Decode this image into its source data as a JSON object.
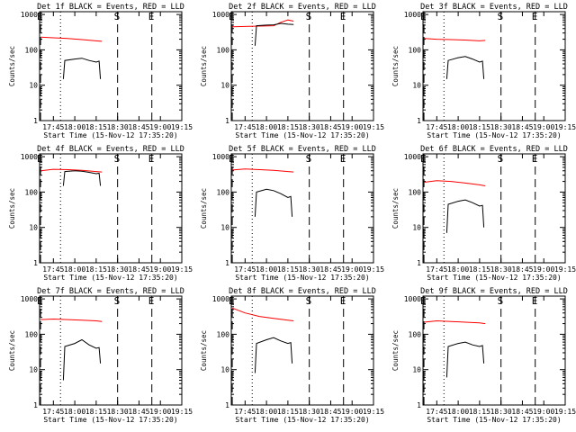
{
  "chart_data": [
    {
      "type": "line",
      "title": "Det 1f BLACK = Events, RED = LLD",
      "xlabel": "Start Time (15-Nov-12 17:35:20)",
      "ylabel": "Counts/sec",
      "yscale": "log",
      "ylim": [
        1,
        1200
      ],
      "xlim": [
        "17:35:20",
        "19:15:00"
      ],
      "x_ticks": [
        "17:45",
        "18:00",
        "18:15",
        "18:30",
        "18:45",
        "19:00",
        "19:15"
      ],
      "y_ticks": [
        "1",
        "10",
        "100",
        "1000"
      ],
      "markers": [
        {
          "label": "E",
          "time": "17:36",
          "style": "dashed"
        },
        {
          "label": "",
          "time": "17:50",
          "style": "dotted"
        },
        {
          "label": "S",
          "time": "18:30",
          "style": "dashed"
        },
        {
          "label": "E",
          "time": "18:54",
          "style": "dashed"
        },
        {
          "label": "",
          "time": "19:15",
          "style": "dotted"
        }
      ],
      "series": [
        {
          "color": "#ff0000",
          "x": [
            "17:36",
            "17:45",
            "17:55",
            "18:05",
            "18:15",
            "18:19"
          ],
          "y": [
            230,
            220,
            210,
            195,
            180,
            175
          ]
        },
        {
          "color": "#000000",
          "x": [
            "17:52",
            "17:53",
            "18:00",
            "18:05",
            "18:10",
            "18:15",
            "18:17",
            "18:18"
          ],
          "y": [
            15,
            50,
            55,
            58,
            50,
            45,
            48,
            15
          ]
        }
      ]
    },
    {
      "type": "line",
      "title": "Det 2f BLACK = Events, RED = LLD",
      "xlabel": "Start Time (15-Nov-12 17:35:20)",
      "ylabel": "Counts/sec",
      "yscale": "log",
      "ylim": [
        1,
        1200
      ],
      "xlim": [
        "17:35:20",
        "19:15:00"
      ],
      "x_ticks": [
        "17:45",
        "18:00",
        "18:15",
        "18:30",
        "18:45",
        "19:00",
        "19:15"
      ],
      "y_ticks": [
        "1",
        "10",
        "100",
        "1000"
      ],
      "markers": [
        {
          "label": "E",
          "time": "17:36",
          "style": "dashed"
        },
        {
          "label": "",
          "time": "17:50",
          "style": "dotted"
        },
        {
          "label": "S",
          "time": "18:30",
          "style": "dashed"
        },
        {
          "label": "E",
          "time": "18:54",
          "style": "dashed"
        },
        {
          "label": "",
          "time": "19:15",
          "style": "dotted"
        }
      ],
      "series": [
        {
          "color": "#ff0000",
          "x": [
            "17:36",
            "17:45",
            "17:55",
            "18:05",
            "18:10",
            "18:15",
            "18:19"
          ],
          "y": [
            450,
            460,
            470,
            480,
            600,
            700,
            650
          ]
        },
        {
          "color": "#000000",
          "x": [
            "17:52",
            "17:53",
            "18:00",
            "18:05",
            "18:10",
            "18:15",
            "18:19"
          ],
          "y": [
            130,
            480,
            500,
            510,
            560,
            530,
            520
          ]
        }
      ]
    },
    {
      "type": "line",
      "title": "Det 3f BLACK = Events, RED = LLD",
      "xlabel": "Start Time (15-Nov-12 17:35:20)",
      "ylabel": "Counts/sec",
      "yscale": "log",
      "ylim": [
        1,
        1200
      ],
      "xlim": [
        "17:35:20",
        "19:15:00"
      ],
      "x_ticks": [
        "17:45",
        "18:00",
        "18:15",
        "18:30",
        "18:45",
        "19:00",
        "19:15"
      ],
      "y_ticks": [
        "1",
        "10",
        "100",
        "1000"
      ],
      "markers": [
        {
          "label": "E",
          "time": "17:36",
          "style": "dashed"
        },
        {
          "label": "",
          "time": "17:50",
          "style": "dotted"
        },
        {
          "label": "S",
          "time": "18:30",
          "style": "dashed"
        },
        {
          "label": "E",
          "time": "18:54",
          "style": "dashed"
        },
        {
          "label": "",
          "time": "19:15",
          "style": "dotted"
        }
      ],
      "series": [
        {
          "color": "#ff0000",
          "x": [
            "17:36",
            "17:45",
            "17:55",
            "18:05",
            "18:15",
            "18:19"
          ],
          "y": [
            210,
            200,
            195,
            190,
            180,
            185
          ]
        },
        {
          "color": "#000000",
          "x": [
            "17:52",
            "17:53",
            "18:00",
            "18:05",
            "18:10",
            "18:15",
            "18:17",
            "18:18"
          ],
          "y": [
            15,
            50,
            60,
            65,
            55,
            45,
            48,
            15
          ]
        }
      ]
    },
    {
      "type": "line",
      "title": "Det 4f BLACK = Events, RED = LLD",
      "xlabel": "Start Time (15-Nov-12 17:35:20)",
      "ylabel": "Counts/sec",
      "yscale": "log",
      "ylim": [
        1,
        1200
      ],
      "xlim": [
        "17:35:20",
        "19:15:00"
      ],
      "x_ticks": [
        "17:45",
        "18:00",
        "18:15",
        "18:30",
        "18:45",
        "19:00",
        "19:15"
      ],
      "y_ticks": [
        "1",
        "10",
        "100",
        "1000"
      ],
      "markers": [
        {
          "label": "E",
          "time": "17:36",
          "style": "dashed"
        },
        {
          "label": "",
          "time": "17:50",
          "style": "dotted"
        },
        {
          "label": "S",
          "time": "18:30",
          "style": "dashed"
        },
        {
          "label": "E",
          "time": "18:54",
          "style": "dashed"
        },
        {
          "label": "",
          "time": "19:15",
          "style": "dotted"
        }
      ],
      "series": [
        {
          "color": "#ff0000",
          "x": [
            "17:36",
            "17:45",
            "17:55",
            "18:05",
            "18:15",
            "18:19"
          ],
          "y": [
            400,
            440,
            430,
            410,
            380,
            370
          ]
        },
        {
          "color": "#000000",
          "x": [
            "17:52",
            "17:53",
            "18:00",
            "18:05",
            "18:10",
            "18:15",
            "18:17",
            "18:18"
          ],
          "y": [
            150,
            380,
            400,
            390,
            360,
            330,
            340,
            150
          ]
        }
      ]
    },
    {
      "type": "line",
      "title": "Det 5f BLACK = Events, RED = LLD",
      "xlabel": "Start Time (15-Nov-12 17:35:20)",
      "ylabel": "Counts/sec",
      "yscale": "log",
      "ylim": [
        1,
        1200
      ],
      "xlim": [
        "17:35:20",
        "19:15:00"
      ],
      "x_ticks": [
        "17:45",
        "18:00",
        "18:15",
        "18:30",
        "18:45",
        "19:00",
        "19:15"
      ],
      "y_ticks": [
        "1",
        "10",
        "100",
        "1000"
      ],
      "markers": [
        {
          "label": "E",
          "time": "17:36",
          "style": "dashed"
        },
        {
          "label": "",
          "time": "17:50",
          "style": "dotted"
        },
        {
          "label": "S",
          "time": "18:30",
          "style": "dashed"
        },
        {
          "label": "E",
          "time": "18:54",
          "style": "dashed"
        },
        {
          "label": "",
          "time": "19:15",
          "style": "dotted"
        }
      ],
      "series": [
        {
          "color": "#ff0000",
          "x": [
            "17:36",
            "17:45",
            "17:55",
            "18:05",
            "18:15",
            "18:19"
          ],
          "y": [
            420,
            450,
            430,
            410,
            380,
            370
          ]
        },
        {
          "color": "#000000",
          "x": [
            "17:52",
            "17:53",
            "18:00",
            "18:05",
            "18:10",
            "18:15",
            "18:17",
            "18:18"
          ],
          "y": [
            20,
            100,
            120,
            110,
            90,
            70,
            75,
            20
          ]
        }
      ]
    },
    {
      "type": "line",
      "title": "Det 6f BLACK = Events, RED = LLD",
      "xlabel": "Start Time (15-Nov-12 17:35:20)",
      "ylabel": "Counts/sec",
      "yscale": "log",
      "ylim": [
        1,
        1200
      ],
      "xlim": [
        "17:35:20",
        "19:15:00"
      ],
      "x_ticks": [
        "17:45",
        "18:00",
        "18:15",
        "18:30",
        "18:45",
        "19:00",
        "19:15"
      ],
      "y_ticks": [
        "1",
        "10",
        "100",
        "1000"
      ],
      "markers": [
        {
          "label": "E",
          "time": "17:36",
          "style": "dashed"
        },
        {
          "label": "",
          "time": "17:50",
          "style": "dotted"
        },
        {
          "label": "S",
          "time": "18:30",
          "style": "dashed"
        },
        {
          "label": "E",
          "time": "18:54",
          "style": "dashed"
        },
        {
          "label": "",
          "time": "19:15",
          "style": "dotted"
        }
      ],
      "series": [
        {
          "color": "#ff0000",
          "x": [
            "17:36",
            "17:45",
            "17:55",
            "18:05",
            "18:15",
            "18:19"
          ],
          "y": [
            190,
            210,
            200,
            180,
            160,
            150
          ]
        },
        {
          "color": "#000000",
          "x": [
            "17:52",
            "17:53",
            "18:00",
            "18:05",
            "18:10",
            "18:15",
            "18:17",
            "18:18"
          ],
          "y": [
            7,
            45,
            55,
            60,
            50,
            40,
            42,
            10
          ]
        }
      ]
    },
    {
      "type": "line",
      "title": "Det 7f BLACK = Events, RED = LLD",
      "xlabel": "Start Time (15-Nov-12 17:35:20)",
      "ylabel": "Counts/sec",
      "yscale": "log",
      "ylim": [
        1,
        1200
      ],
      "xlim": [
        "17:35:20",
        "19:15:00"
      ],
      "x_ticks": [
        "17:45",
        "18:00",
        "18:15",
        "18:30",
        "18:45",
        "19:00",
        "19:15"
      ],
      "y_ticks": [
        "1",
        "10",
        "100",
        "1000"
      ],
      "markers": [
        {
          "label": "E",
          "time": "17:36",
          "style": "dashed"
        },
        {
          "label": "",
          "time": "17:50",
          "style": "dotted"
        },
        {
          "label": "S",
          "time": "18:30",
          "style": "dashed"
        },
        {
          "label": "E",
          "time": "18:54",
          "style": "dashed"
        },
        {
          "label": "",
          "time": "19:15",
          "style": "dotted"
        }
      ],
      "series": [
        {
          "color": "#ff0000",
          "x": [
            "17:36",
            "17:45",
            "17:55",
            "18:05",
            "18:15",
            "18:19"
          ],
          "y": [
            260,
            270,
            260,
            250,
            240,
            230
          ]
        },
        {
          "color": "#000000",
          "x": [
            "17:52",
            "17:53",
            "18:00",
            "18:05",
            "18:10",
            "18:15",
            "18:17",
            "18:18"
          ],
          "y": [
            5,
            45,
            55,
            70,
            50,
            40,
            42,
            15
          ]
        }
      ]
    },
    {
      "type": "line",
      "title": "Det 8f BLACK = Events, RED = LLD",
      "xlabel": "Start Time (15-Nov-12 17:35:20)",
      "ylabel": "Counts/sec",
      "yscale": "log",
      "ylim": [
        1,
        1200
      ],
      "xlim": [
        "17:35:20",
        "19:15:00"
      ],
      "x_ticks": [
        "17:45",
        "18:00",
        "18:15",
        "18:30",
        "18:45",
        "19:00",
        "19:15"
      ],
      "y_ticks": [
        "1",
        "10",
        "100",
        "1000"
      ],
      "markers": [
        {
          "label": "E",
          "time": "17:36",
          "style": "dashed"
        },
        {
          "label": "",
          "time": "17:50",
          "style": "dotted"
        },
        {
          "label": "S",
          "time": "18:30",
          "style": "dashed"
        },
        {
          "label": "E",
          "time": "18:54",
          "style": "dashed"
        },
        {
          "label": "",
          "time": "19:15",
          "style": "dotted"
        }
      ],
      "series": [
        {
          "color": "#ff0000",
          "x": [
            "17:36",
            "17:45",
            "17:55",
            "18:05",
            "18:15",
            "18:19"
          ],
          "y": [
            550,
            400,
            320,
            280,
            250,
            240
          ]
        },
        {
          "color": "#000000",
          "x": [
            "17:52",
            "17:53",
            "18:00",
            "18:05",
            "18:10",
            "18:15",
            "18:17",
            "18:18"
          ],
          "y": [
            8,
            55,
            70,
            80,
            65,
            55,
            58,
            15
          ]
        }
      ]
    },
    {
      "type": "line",
      "title": "Det 9f BLACK = Events, RED = LLD",
      "xlabel": "Start Time (15-Nov-12 17:35:20)",
      "ylabel": "Counts/sec",
      "yscale": "log",
      "ylim": [
        1,
        1200
      ],
      "xlim": [
        "17:35:20",
        "19:15:00"
      ],
      "x_ticks": [
        "17:45",
        "18:00",
        "18:15",
        "18:30",
        "18:45",
        "19:00",
        "19:15"
      ],
      "y_ticks": [
        "1",
        "10",
        "100",
        "1000"
      ],
      "markers": [
        {
          "label": "E",
          "time": "17:36",
          "style": "dashed"
        },
        {
          "label": "",
          "time": "17:50",
          "style": "dotted"
        },
        {
          "label": "S",
          "time": "18:30",
          "style": "dashed"
        },
        {
          "label": "E",
          "time": "18:54",
          "style": "dashed"
        },
        {
          "label": "",
          "time": "19:15",
          "style": "dotted"
        }
      ],
      "series": [
        {
          "color": "#ff0000",
          "x": [
            "17:36",
            "17:45",
            "17:55",
            "18:05",
            "18:15",
            "18:19"
          ],
          "y": [
            220,
            240,
            230,
            220,
            210,
            200
          ]
        },
        {
          "color": "#000000",
          "x": [
            "17:52",
            "17:53",
            "18:00",
            "18:05",
            "18:10",
            "18:15",
            "18:17",
            "18:18"
          ],
          "y": [
            6,
            45,
            55,
            60,
            50,
            45,
            48,
            15
          ]
        }
      ]
    }
  ]
}
